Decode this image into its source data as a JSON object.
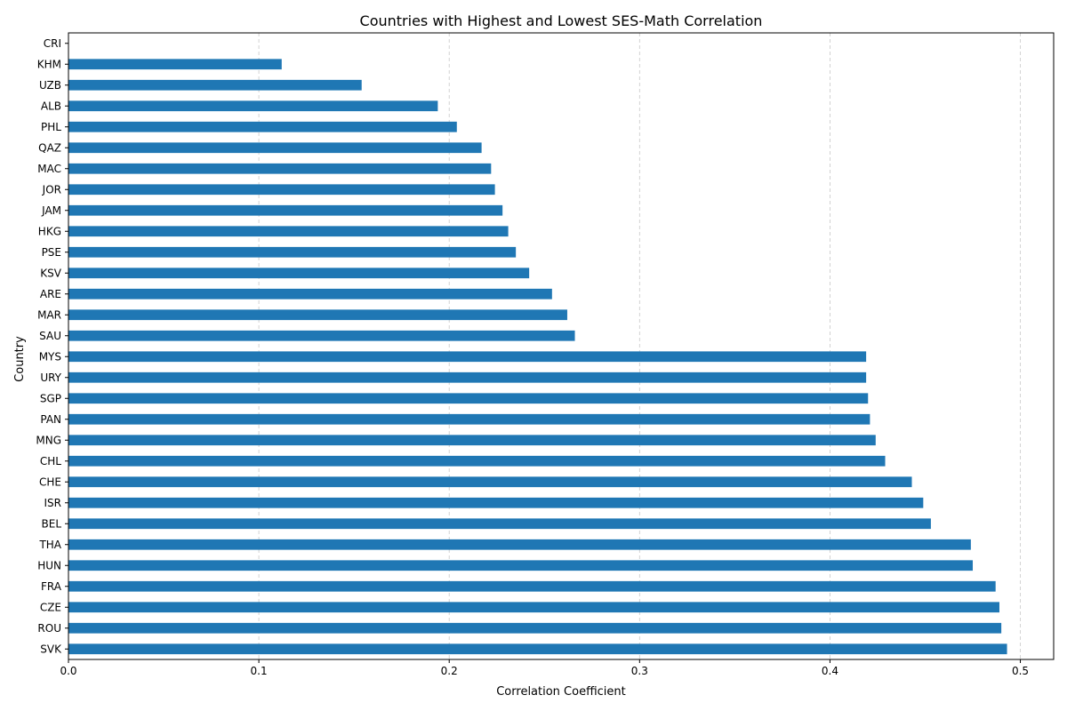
{
  "chart_data": {
    "type": "bar",
    "orientation": "horizontal",
    "title": "Countries with Highest and Lowest SES-Math Correlation",
    "xlabel": "Correlation Coefficient",
    "ylabel": "Country",
    "xlim": [
      0,
      0.5175
    ],
    "x_ticks": [
      "0.0",
      "0.1",
      "0.2",
      "0.3",
      "0.4",
      "0.5"
    ],
    "grid": "x-dashed",
    "bar_color": "#1f77b4",
    "categories": [
      "SVK",
      "ROU",
      "CZE",
      "FRA",
      "HUN",
      "THA",
      "BEL",
      "ISR",
      "CHE",
      "CHL",
      "MNG",
      "PAN",
      "SGP",
      "URY",
      "MYS",
      "SAU",
      "MAR",
      "ARE",
      "KSV",
      "PSE",
      "HKG",
      "JAM",
      "JOR",
      "MAC",
      "QAZ",
      "PHL",
      "ALB",
      "UZB",
      "KHM",
      "CRI"
    ],
    "values": [
      0.493,
      0.49,
      0.489,
      0.487,
      0.475,
      0.474,
      0.453,
      0.449,
      0.443,
      0.429,
      0.424,
      0.421,
      0.42,
      0.419,
      0.419,
      0.266,
      0.262,
      0.254,
      0.242,
      0.235,
      0.231,
      0.228,
      0.224,
      0.222,
      0.217,
      0.204,
      0.194,
      0.154,
      0.112,
      0.0
    ]
  }
}
